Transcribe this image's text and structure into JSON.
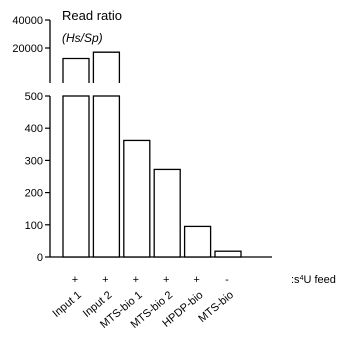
{
  "chart_data": {
    "type": "bar",
    "categories": [
      "Input 1",
      "Input 2",
      "MTS-bio 1",
      "MTS-bio 2",
      "HPDP-bio",
      "MTS-bio"
    ],
    "values": [
      12500,
      17000,
      362,
      272,
      95,
      18
    ],
    "feed": [
      "+",
      "+",
      "+",
      "+",
      "+",
      "-"
    ],
    "feed_label_prefix": ":s",
    "feed_label_sup": "4",
    "feed_label_suffix": "U feed",
    "ylabel_main": "Read ratio",
    "ylabel_sub": "(Hs/Sp)",
    "lower_ylim": [
      0,
      500
    ],
    "lower_ticks": [
      "0",
      "100",
      "200",
      "300",
      "400",
      "500"
    ],
    "upper_ylim": [
      0,
      40000
    ],
    "upper_ticks": [
      "20000",
      "40000"
    ],
    "axis_break": true
  },
  "colors": {
    "bar_fill": "#ffffff",
    "bar_stroke": "#000000",
    "axis": "#000000"
  }
}
